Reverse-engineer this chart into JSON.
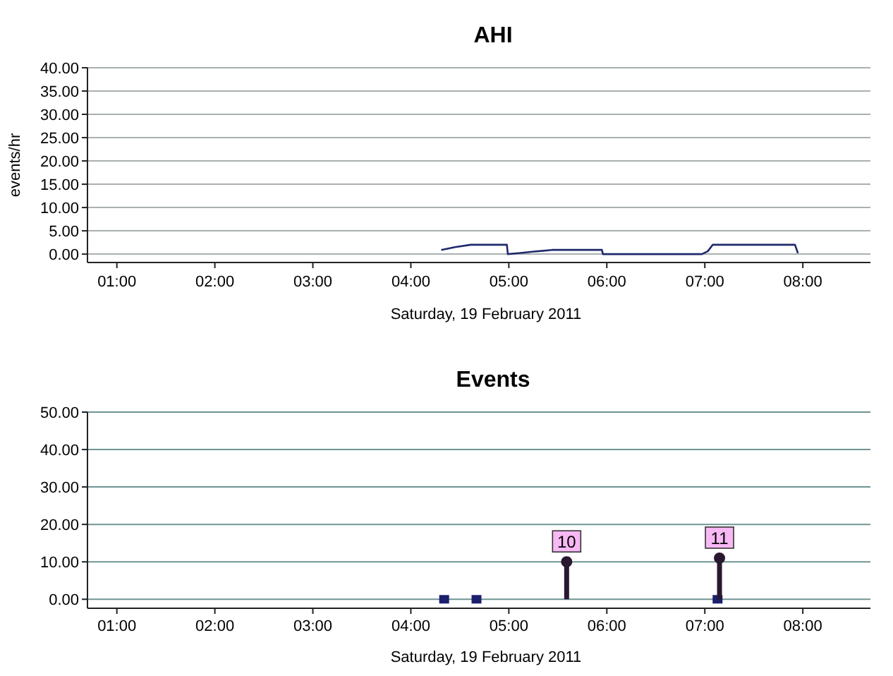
{
  "chart_data": [
    {
      "type": "line",
      "title": "AHI",
      "ylabel": "events/hr",
      "xlabel": "Saturday, 19 February 2011",
      "xlim": [
        0.7,
        8.69
      ],
      "ylim": [
        -1.8,
        40
      ],
      "xticks": [
        {
          "value": 1,
          "label": "01:00"
        },
        {
          "value": 2,
          "label": "02:00"
        },
        {
          "value": 3,
          "label": "03:00"
        },
        {
          "value": 4,
          "label": "04:00"
        },
        {
          "value": 5,
          "label": "05:00"
        },
        {
          "value": 6,
          "label": "06:00"
        },
        {
          "value": 7,
          "label": "07:00"
        },
        {
          "value": 8,
          "label": "08:00"
        }
      ],
      "yticks": [
        {
          "value": 0,
          "label": "0.00"
        },
        {
          "value": 5,
          "label": "5.00"
        },
        {
          "value": 10,
          "label": "10.00"
        },
        {
          "value": 15,
          "label": "15.00"
        },
        {
          "value": 20,
          "label": "20.00"
        },
        {
          "value": 25,
          "label": "25.00"
        },
        {
          "value": 30,
          "label": "30.00"
        },
        {
          "value": 35,
          "label": "35.00"
        },
        {
          "value": 40,
          "label": "40.00"
        }
      ],
      "grid": "y",
      "marker": "none",
      "line_style": "solid",
      "series": [
        {
          "color": "#1f2a6b",
          "x": [
            4.31,
            4.45,
            4.61,
            4.98,
            4.99,
            5.1,
            5.24,
            5.44,
            5.95,
            5.96,
            6.97,
            7.03,
            7.08,
            7.92,
            7.95
          ],
          "values": [
            0.9,
            1.5,
            2.0,
            2.0,
            0,
            0.2,
            0.5,
            0.9,
            0.9,
            0,
            0,
            0.6,
            2.0,
            2.0,
            0.2
          ]
        }
      ]
    },
    {
      "type": "scatter",
      "title": "Events",
      "xlabel": "Saturday, 19 February 2011",
      "xlim": [
        0.7,
        8.69
      ],
      "ylim": [
        -2.4,
        50
      ],
      "xticks": [
        {
          "value": 1,
          "label": "01:00"
        },
        {
          "value": 2,
          "label": "02:00"
        },
        {
          "value": 3,
          "label": "03:00"
        },
        {
          "value": 4,
          "label": "04:00"
        },
        {
          "value": 5,
          "label": "05:00"
        },
        {
          "value": 6,
          "label": "06:00"
        },
        {
          "value": 7,
          "label": "07:00"
        },
        {
          "value": 8,
          "label": "08:00"
        }
      ],
      "yticks": [
        {
          "value": 0,
          "label": "0.00"
        },
        {
          "value": 10,
          "label": "10.00"
        },
        {
          "value": 20,
          "label": "20.00"
        },
        {
          "value": 30,
          "label": "30.00"
        },
        {
          "value": 40,
          "label": "40.00"
        },
        {
          "value": 50,
          "label": "50.00"
        }
      ],
      "grid": "y",
      "series": [
        {
          "color": "#1a1f6e",
          "marker": "square",
          "x": [
            4.34,
            4.67,
            7.13
          ],
          "values": [
            0,
            0,
            0
          ]
        },
        {
          "type": "lollipop",
          "marker": "circle",
          "color": "#2a1830",
          "x": [
            5.59,
            7.15
          ],
          "values": [
            10,
            11
          ],
          "value_labels": [
            "10",
            "11"
          ]
        }
      ]
    }
  ]
}
